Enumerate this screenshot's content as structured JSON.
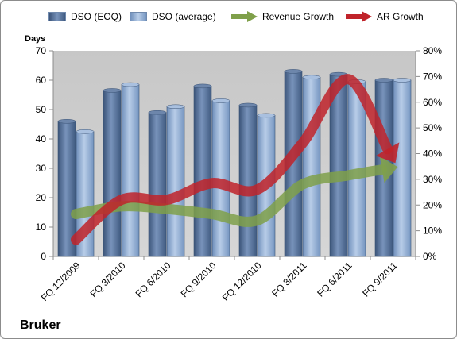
{
  "chart_data": {
    "type": "bar",
    "ylabel": "Days",
    "ylim": [
      0,
      70
    ],
    "yticks": [
      "0",
      "10",
      "20",
      "30",
      "40",
      "50",
      "60",
      "70"
    ],
    "y2lim": [
      0,
      80
    ],
    "y2ticks": [
      "0%",
      "10%",
      "20%",
      "30%",
      "40%",
      "50%",
      "60%",
      "70%",
      "80%"
    ],
    "categories": [
      "FQ 12/2009",
      "FQ 3/2010",
      "FQ 6/2010",
      "FQ 9/2010",
      "FQ 12/2010",
      "FQ 3/2011",
      "FQ 6/2011",
      "FQ 9/2011"
    ],
    "series": [
      {
        "name": "DSO (EOQ)",
        "kind": "bar",
        "axis": "left",
        "color": "#4f6b94",
        "values": [
          46,
          56.5,
          49,
          58,
          51.5,
          63,
          62,
          60
        ]
      },
      {
        "name": "DSO (average)",
        "kind": "bar",
        "axis": "left",
        "color": "#8ba8d0",
        "values": [
          42.5,
          58.5,
          51,
          53,
          48,
          61,
          59.5,
          60
        ]
      },
      {
        "name": "Revenue Growth",
        "kind": "arrow-line",
        "axis": "right",
        "color": "#7fa04a",
        "values": [
          16.5,
          19.5,
          18.5,
          16.5,
          14,
          28,
          31.5,
          34.5
        ]
      },
      {
        "name": "AR Growth",
        "kind": "arrow-line",
        "axis": "right",
        "color": "#c0232a",
        "values": [
          6.5,
          22,
          22,
          28.5,
          26,
          44,
          69,
          38
        ]
      }
    ],
    "legend_position": "top",
    "grid": false,
    "company": "Bruker"
  }
}
